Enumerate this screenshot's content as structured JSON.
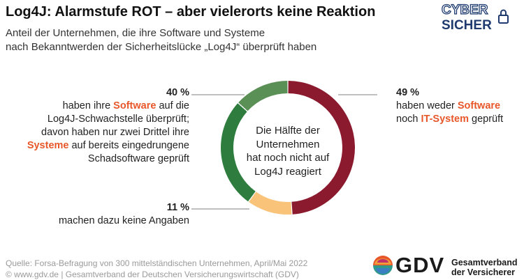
{
  "header": {
    "title": "Log4J: Alarmstufe ROT – aber vielerorts keine Reaktion",
    "subtitle_line1": "Anteil der Unternehmen, die ihre Software und Systeme",
    "subtitle_line2": "nach Bekanntwerden der Sicherheitslücke „Log4J“ überprüft haben"
  },
  "logo": {
    "line1": "CYBER",
    "line2": "SICHER",
    "icon": "lock-icon"
  },
  "chart_data": {
    "type": "pie",
    "donut": true,
    "slices": [
      {
        "value": 49,
        "color": "#8b1a2e"
      },
      {
        "value": 11,
        "color": "#f9c47a"
      },
      {
        "value": 26.67,
        "color": "#2e7d3e",
        "group": 40
      },
      {
        "value": 13.33,
        "color": "#5a8f55",
        "group": 40
      }
    ],
    "center_text": [
      "Die Hälfte der",
      "Unternehmen",
      "hat noch nicht auf",
      "Log4J reagiert"
    ],
    "labels": {
      "right": {
        "pct": "49 %",
        "l2a": "haben weder ",
        "l2b": "Software",
        "l3a": "noch ",
        "l3b": "IT-System",
        "l3c": " geprüft"
      },
      "left_top": {
        "pct": "40 %",
        "l2a": "haben ihre ",
        "l2b": "Software",
        "l2c": " auf die",
        "l3": "Log4J-Schwachstelle überprüft;",
        "l4": "davon haben nur zwei Drittel ihre",
        "l5a": "Systeme",
        "l5b": " auf bereits eingedrungene",
        "l6": "Schadsoftware geprüft"
      },
      "left_bottom": {
        "pct": "11 %",
        "l2": "machen dazu keine Angaben"
      }
    }
  },
  "footer": {
    "source_line1": "Quelle: Forsa-Befragung von 300 mittelständischen Unternehmen, April/Mai 2022",
    "source_line2": "© www.gdv.de  |  Gesamtverband der Deutschen Versicherungswirtschaft (GDV)",
    "gdv_name": "GDV",
    "gdv_sub1": "Gesamtverband",
    "gdv_sub2": "der Versicherer"
  }
}
